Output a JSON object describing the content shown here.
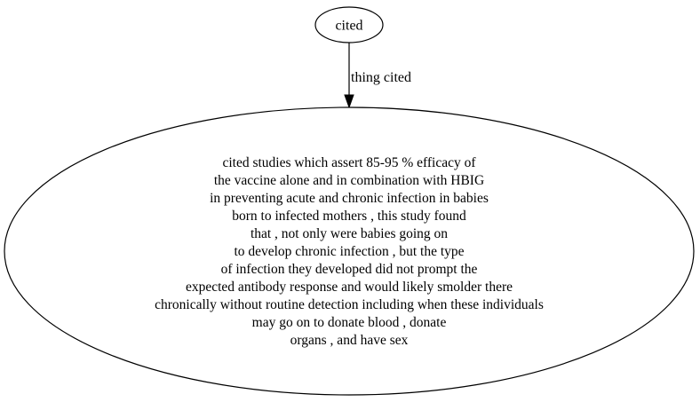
{
  "graph": {
    "nodes": [
      {
        "id": "cited",
        "label": "cited"
      },
      {
        "id": "description",
        "lines": [
          "cited studies which assert 85-95 % efficacy of",
          "the vaccine alone and in combination with HBIG",
          "in preventing acute and chronic infection in babies",
          "born to infected mothers , this study found",
          "that , not only were babies going on",
          "to develop chronic infection , but the type",
          "of infection they developed did not prompt the",
          "expected antibody response and would likely smolder there",
          "chronically without routine detection including when these individuals",
          "may go on to donate blood , donate",
          "organs , and have sex"
        ]
      }
    ],
    "edges": [
      {
        "from": "cited",
        "to": "description",
        "label": "thing cited"
      }
    ],
    "colors": {
      "stroke": "#000000",
      "fill": "#ffffff",
      "text": "#000000"
    }
  }
}
